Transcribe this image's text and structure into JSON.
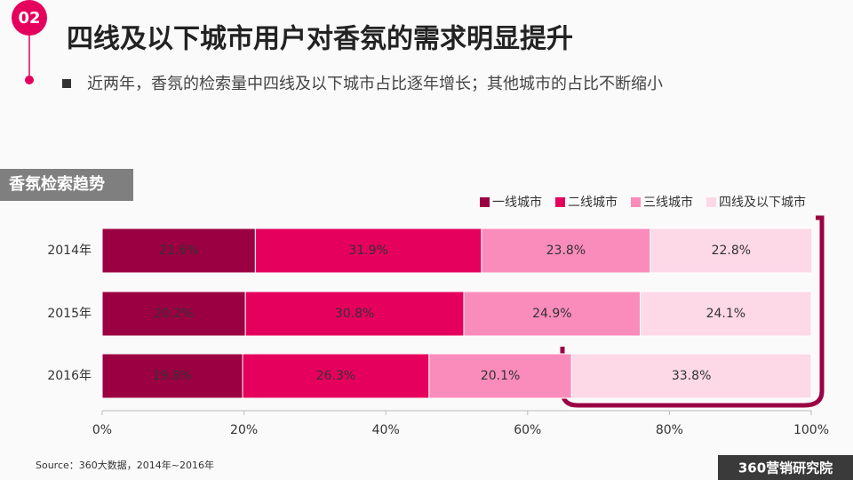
{
  "slide": {
    "badge": "02",
    "title": "四线及以下城市用户对香氛的需求明显提升",
    "subtitle": "近两年，香氛的检索量中四线及以下城市占比逐年增长；其他城市的占比不断缩小",
    "section_label": "香氛检索趋势",
    "source": "Source：360大数据，2014年~2016年",
    "logo": "360营销研究院"
  },
  "chart_data": {
    "type": "bar",
    "orientation": "horizontal",
    "stacked": true,
    "categories": [
      "2014年",
      "2015年",
      "2016年"
    ],
    "series": [
      {
        "name": "一线城市",
        "color": "#9a0042",
        "values": [
          21.6,
          20.2,
          19.8
        ],
        "value_labels": [
          "21.6%",
          "20.2%",
          "19.8%"
        ]
      },
      {
        "name": "二线城市",
        "color": "#e6005e",
        "values": [
          31.9,
          30.8,
          26.3
        ],
        "value_labels": [
          "31.9%",
          "30.8%",
          "26.3%"
        ]
      },
      {
        "name": "三线城市",
        "color": "#f98cbb",
        "values": [
          23.8,
          24.9,
          20.1
        ],
        "value_labels": [
          "23.8%",
          "24.9%",
          "20.1%"
        ]
      },
      {
        "name": "四线及以下城市",
        "color": "#fdd8e7",
        "values": [
          22.8,
          24.1,
          33.8
        ],
        "value_labels": [
          "22.8%",
          "24.1%",
          "33.8%"
        ]
      }
    ],
    "xlim": [
      0,
      100
    ],
    "xticks": [
      {
        "value": 0,
        "label": "0%"
      },
      {
        "value": 20,
        "label": "20%"
      },
      {
        "value": 40,
        "label": "40%"
      },
      {
        "value": 60,
        "label": "60%"
      },
      {
        "value": 80,
        "label": "80%"
      },
      {
        "value": 100,
        "label": "100%"
      }
    ],
    "legend": "top-right"
  }
}
